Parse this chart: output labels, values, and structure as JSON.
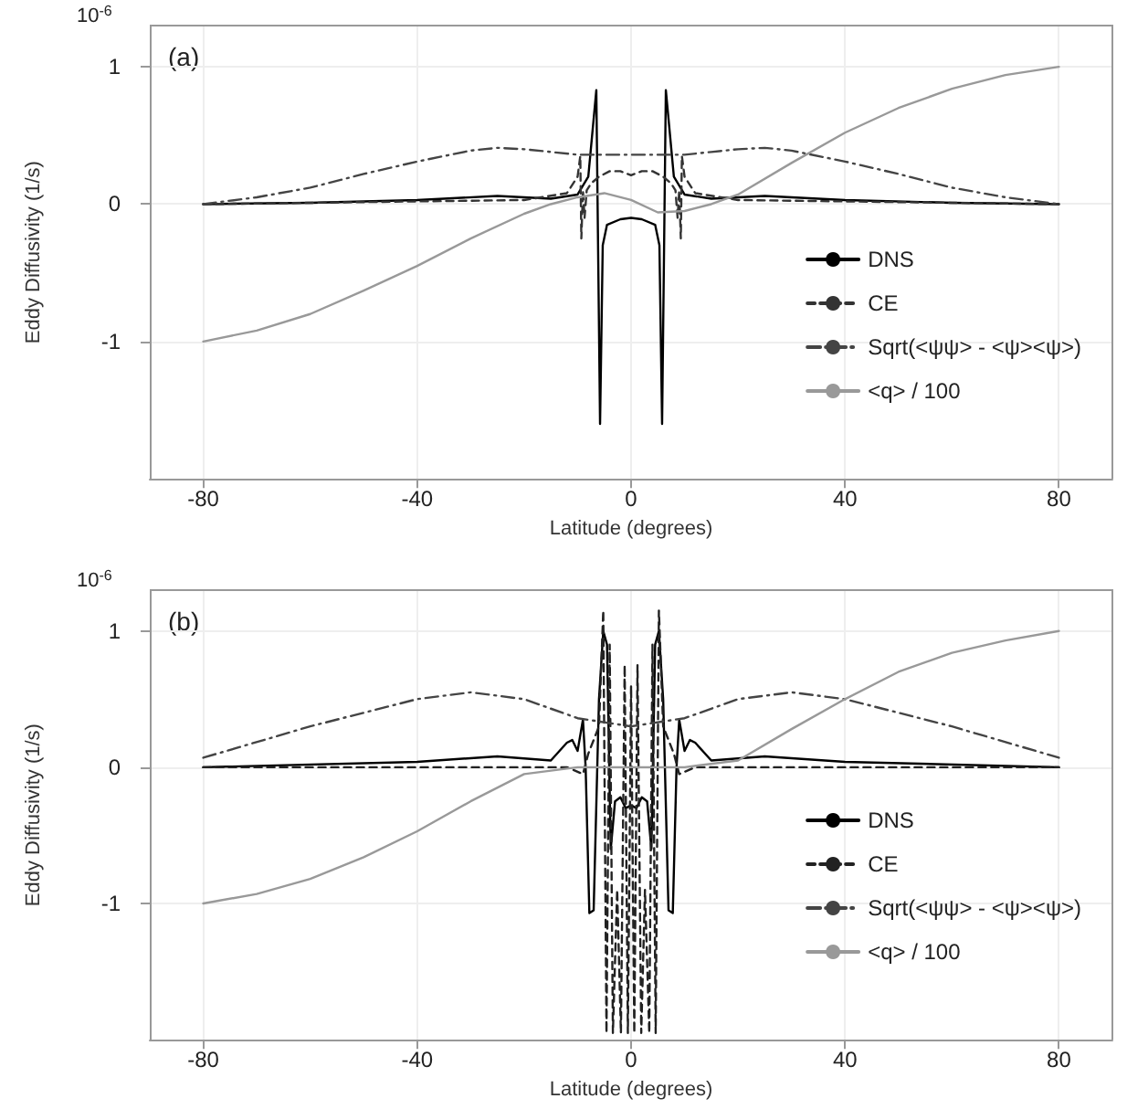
{
  "chart_data": [
    {
      "type": "line",
      "xlabel": "Latitude (degrees)",
      "ylabel": "Eddy Diffusivity (1/s)",
      "annotations": [
        "(a)",
        "10$^{-6}$"
      ],
      "xlim": [
        -90,
        90
      ],
      "xticks": [
        -80,
        -40,
        0,
        40,
        80
      ],
      "ylim": [
        -2,
        1.3
      ],
      "yticks": [
        -1,
        0,
        1
      ],
      "grid": true,
      "legend": "bottom right",
      "marker": "none",
      "series": [
        {
          "name": "DNS",
          "color": "#000000",
          "line_style": "solid",
          "x": [
            -80,
            -60,
            -40,
            -25,
            -15,
            -10,
            -8,
            -6.5,
            -5.8,
            -5.3,
            -4.5,
            -2,
            0,
            2,
            4.5,
            5.3,
            5.8,
            6.5,
            8,
            10,
            15,
            25,
            40,
            60,
            80
          ],
          "values": [
            0,
            0.01,
            0.03,
            0.06,
            0.04,
            0.07,
            0.2,
            0.83,
            -1.6,
            -0.3,
            -0.15,
            -0.11,
            -0.1,
            -0.11,
            -0.15,
            -0.3,
            -1.6,
            0.83,
            0.2,
            0.07,
            0.04,
            0.06,
            0.03,
            0.01,
            0
          ]
        },
        {
          "name": "CE",
          "color": "#333333",
          "line_style": "dashed",
          "x": [
            -80,
            -40,
            -20,
            -12,
            -10,
            -9.5,
            -9.3,
            -9,
            -8.7,
            -8.3,
            -7.5,
            -6,
            -4,
            -2,
            0,
            2,
            4,
            6,
            7.5,
            8.3,
            8.7,
            9,
            9.3,
            9.5,
            10,
            12,
            20,
            40,
            80
          ],
          "values": [
            0,
            0.02,
            0.03,
            0.08,
            0.2,
            0.35,
            -0.25,
            0.1,
            -0.1,
            0.1,
            0.15,
            0.2,
            0.24,
            0.24,
            0.21,
            0.24,
            0.24,
            0.2,
            0.15,
            0.1,
            -0.1,
            0.1,
            -0.25,
            0.35,
            0.2,
            0.08,
            0.03,
            0.02,
            0
          ]
        },
        {
          "name": "Sqrt(<ψψ> - <ψ><ψ>)",
          "color": "#444444",
          "line_style": "dashdot",
          "x": [
            -80,
            -70,
            -60,
            -50,
            -40,
            -30,
            -25,
            -20,
            -15,
            -10,
            0,
            10,
            15,
            20,
            25,
            30,
            40,
            50,
            60,
            70,
            80
          ],
          "values": [
            0,
            0.05,
            0.12,
            0.22,
            0.31,
            0.39,
            0.41,
            0.4,
            0.38,
            0.36,
            0.36,
            0.36,
            0.38,
            0.4,
            0.41,
            0.39,
            0.31,
            0.22,
            0.12,
            0.05,
            0
          ]
        },
        {
          "name": "<q> / 100",
          "color": "#999999",
          "line_style": "solid",
          "x": [
            -80,
            -70,
            -60,
            -50,
            -40,
            -30,
            -20,
            -15,
            -10,
            -5,
            0,
            5,
            10,
            15,
            20,
            30,
            40,
            50,
            60,
            70,
            80
          ],
          "values": [
            -1,
            -0.92,
            -0.8,
            -0.63,
            -0.45,
            -0.25,
            -0.07,
            0,
            0.05,
            0.08,
            0.03,
            -0.06,
            -0.05,
            0,
            0.07,
            0.3,
            0.52,
            0.7,
            0.84,
            0.94,
            1
          ]
        }
      ]
    },
    {
      "type": "line",
      "xlabel": "Latitude (degrees)",
      "ylabel": "Eddy Diffusivity (1/s)",
      "annotations": [
        "(b)",
        "10$^{-6}$"
      ],
      "xlim": [
        -90,
        90
      ],
      "xticks": [
        -80,
        -40,
        0,
        40,
        80
      ],
      "ylim": [
        -2,
        1.3
      ],
      "yticks": [
        -1,
        0,
        1
      ],
      "grid": true,
      "legend": "bottom right",
      "marker": "none",
      "series": [
        {
          "name": "DNS",
          "color": "#000000",
          "line_style": "solid",
          "x": [
            -80,
            -40,
            -25,
            -15,
            -12,
            -11,
            -10,
            -9,
            -8.5,
            -7.8,
            -7,
            -6,
            -5.2,
            -4.5,
            -3.8,
            -3,
            -2,
            -1,
            0,
            1,
            2,
            3,
            3.8,
            4.5,
            5.2,
            6,
            7,
            7.8,
            8.5,
            9,
            10,
            11,
            12,
            15,
            25,
            40,
            80
          ],
          "values": [
            0,
            0.04,
            0.08,
            0.05,
            0.18,
            0.2,
            0.12,
            0.35,
            0,
            -1.07,
            -1.05,
            0.5,
            1,
            0.9,
            -0.6,
            -0.25,
            -0.22,
            -0.3,
            -0.28,
            -0.3,
            -0.22,
            -0.25,
            -0.6,
            0.9,
            1,
            0.5,
            -1.05,
            -1.07,
            0,
            0.35,
            0.12,
            0.2,
            0.18,
            0.05,
            0.08,
            0.04,
            0
          ]
        },
        {
          "name": "CE",
          "color": "#222222",
          "line_style": "dashed",
          "x": [
            -80,
            -12,
            -9,
            -8,
            -6,
            -5.2,
            -4.6,
            -4,
            -3.4,
            -2.6,
            -1.9,
            -1.2,
            -0.6,
            0,
            0.6,
            1.2,
            1.9,
            2.6,
            3.4,
            4,
            4.6,
            5.2,
            6,
            8,
            9,
            12,
            80
          ],
          "values": [
            0,
            0,
            -0.05,
            0.1,
            0.3,
            1.15,
            -1.95,
            0.9,
            -1.95,
            -0.9,
            -1.95,
            0.75,
            -1.95,
            0.6,
            -1.95,
            0.75,
            -1.95,
            -0.9,
            -1.95,
            0.9,
            -1.95,
            1.15,
            0.3,
            0.1,
            -0.05,
            0,
            0
          ]
        },
        {
          "name": "Sqrt(<ψψ> - <ψ><ψ>)",
          "color": "#444444",
          "line_style": "dashdot",
          "x": [
            -80,
            -60,
            -40,
            -30,
            -20,
            -10,
            0,
            10,
            20,
            30,
            40,
            60,
            80
          ],
          "values": [
            0.07,
            0.3,
            0.5,
            0.55,
            0.5,
            0.36,
            0.3,
            0.36,
            0.5,
            0.55,
            0.5,
            0.3,
            0.07
          ]
        },
        {
          "name": "<q> / 100",
          "color": "#999999",
          "line_style": "solid",
          "x": [
            -80,
            -70,
            -60,
            -50,
            -40,
            -30,
            -20,
            -10,
            0,
            10,
            20,
            30,
            40,
            50,
            60,
            70,
            80
          ],
          "values": [
            -1,
            -0.93,
            -0.82,
            -0.66,
            -0.47,
            -0.25,
            -0.05,
            0,
            0,
            0,
            0.05,
            0.28,
            0.5,
            0.7,
            0.84,
            0.93,
            1
          ]
        }
      ]
    }
  ]
}
